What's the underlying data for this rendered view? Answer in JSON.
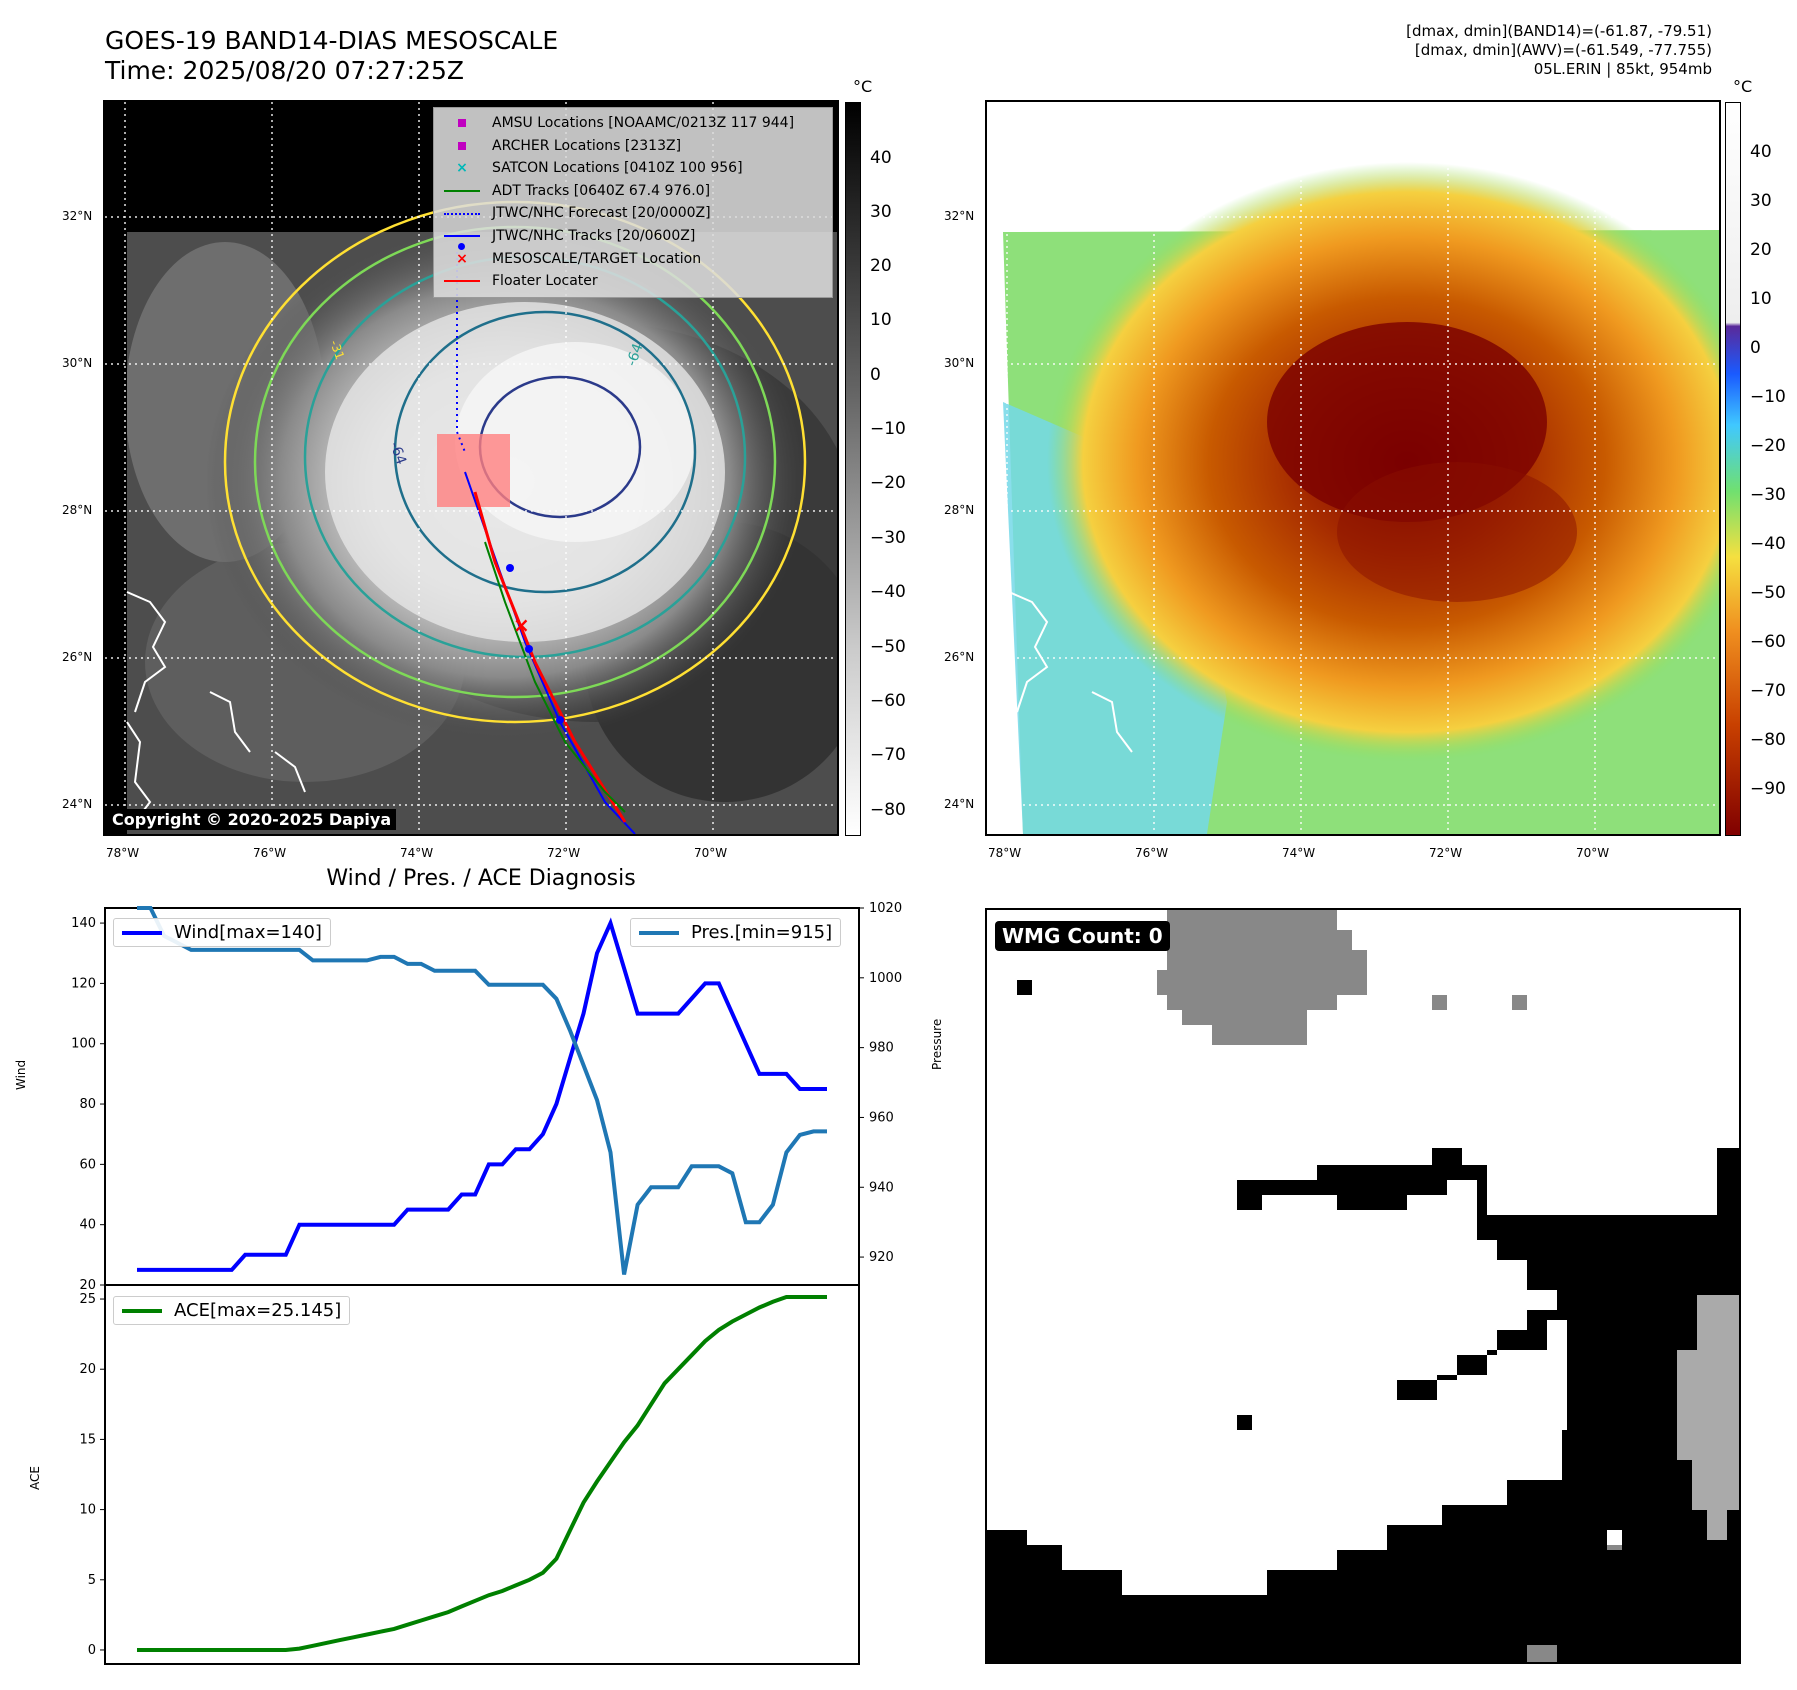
{
  "header": {
    "title_line1": "GOES-19 BAND14-DIAS MESOSCALE",
    "title_line2": "Time: 2025/08/20 07:27:25Z",
    "info_line1": "[dmax, dmin](BAND14)=(-61.87, -79.51)",
    "info_line2": "[dmax, dmin](AWV)=(-61.549, -77.755)",
    "info_line3": "05L.ERIN | 85kt, 954mb"
  },
  "map_axes": {
    "lat_labels": [
      "32°N",
      "30°N",
      "28°N",
      "26°N",
      "24°N"
    ],
    "lon_labels": [
      "78°W",
      "76°W",
      "74°W",
      "72°W",
      "70°W"
    ]
  },
  "ir_panel": {
    "unit": "°C",
    "colorbar_ticks": [
      "40",
      "30",
      "20",
      "10",
      "0",
      "−10",
      "−20",
      "−30",
      "−40",
      "−50",
      "−60",
      "−70",
      "−80"
    ],
    "contour_labels": [
      "-64",
      "-64",
      "-31"
    ],
    "copyright": "Copyright © 2020-2025 Dapiya",
    "legend": [
      {
        "label": "AMSU Locations [NOAAMC/0213Z 117 944]",
        "icon": "magenta-square",
        "color": "#c000c0"
      },
      {
        "label": "ARCHER Locations [2313Z]",
        "icon": "magenta-square",
        "color": "#c000c0"
      },
      {
        "label": "SATCON Locations [0410Z 100 956]",
        "icon": "cyan-x",
        "color": "#00b8b8"
      },
      {
        "label": "ADT Tracks [0640Z 67.4 976.0]",
        "icon": "green-line",
        "color": "#008000"
      },
      {
        "label": "JTWC/NHC Forecast [20/0000Z]",
        "icon": "blue-dotted-line",
        "color": "#0000ff"
      },
      {
        "label": "JTWC/NHC Tracks [20/0600Z]",
        "icon": "blue-line-dot",
        "color": "#0000ff"
      },
      {
        "label": "MESOSCALE/TARGET Location",
        "icon": "red-x",
        "color": "#ff0000"
      },
      {
        "label": "Floater Locater",
        "icon": "red-line",
        "color": "#ff0000"
      }
    ]
  },
  "awv_panel": {
    "unit": "°C",
    "colorbar_ticks": [
      "40",
      "30",
      "20",
      "10",
      "0",
      "−10",
      "−20",
      "−30",
      "−40",
      "−50",
      "−60",
      "−70",
      "−80",
      "−90"
    ]
  },
  "wmg_panel": {
    "label": "WMG Count: 0"
  },
  "chart_data": [
    {
      "type": "line",
      "title": "Wind / Pres. / ACE Diagnosis",
      "ylabel": "Wind",
      "ylabel_right": "Pressure",
      "ylim": [
        20,
        145
      ],
      "ylim_right": [
        912,
        1020
      ],
      "yticks": [
        20,
        40,
        60,
        80,
        100,
        120,
        140
      ],
      "yticks_right": [
        920,
        940,
        960,
        980,
        1000,
        1020
      ],
      "x": [
        0,
        1,
        2,
        3,
        4,
        5,
        6,
        7,
        8,
        9,
        10,
        11,
        12,
        13,
        14,
        15,
        16,
        17,
        18,
        19,
        20,
        21,
        22,
        23,
        24,
        25,
        26,
        27,
        28,
        29,
        30,
        31,
        32,
        33,
        34,
        35,
        36,
        37,
        38,
        39,
        40,
        41,
        42,
        43,
        44,
        45,
        46,
        47,
        48,
        49,
        50,
        51
      ],
      "series": [
        {
          "name": "Wind",
          "legend": "Wind[max=140]",
          "color": "#0000ff",
          "axis": "left",
          "values": [
            25,
            25,
            25,
            25,
            25,
            25,
            25,
            25,
            30,
            30,
            30,
            30,
            40,
            40,
            40,
            40,
            40,
            40,
            40,
            40,
            45,
            45,
            45,
            45,
            50,
            50,
            60,
            60,
            65,
            65,
            70,
            80,
            95,
            110,
            130,
            140,
            125,
            110,
            110,
            110,
            110,
            115,
            120,
            120,
            110,
            100,
            90,
            90,
            90,
            85,
            85,
            85
          ]
        },
        {
          "name": "Pres.",
          "legend": "Pres.[min=915]",
          "color": "#1f77b4",
          "axis": "right",
          "values": [
            1020,
            1020,
            1012,
            1010,
            1008,
            1008,
            1008,
            1008,
            1008,
            1008,
            1008,
            1008,
            1008,
            1005,
            1005,
            1005,
            1005,
            1005,
            1006,
            1006,
            1004,
            1004,
            1002,
            1002,
            1002,
            1002,
            998,
            998,
            998,
            998,
            998,
            994,
            985,
            975,
            965,
            950,
            915,
            935,
            940,
            940,
            940,
            946,
            946,
            946,
            944,
            930,
            930,
            935,
            950,
            955,
            956,
            956
          ]
        }
      ],
      "legend_left": "Wind[max=140]",
      "legend_right": "Pres.[min=915]"
    },
    {
      "type": "line",
      "ylabel": "ACE",
      "ylim": [
        -1,
        26
      ],
      "yticks": [
        0,
        5,
        10,
        15,
        20,
        25
      ],
      "series": [
        {
          "name": "ACE",
          "legend": "ACE[max=25.145]",
          "color": "#008000",
          "values": [
            0,
            0,
            0,
            0,
            0,
            0,
            0,
            0,
            0,
            0,
            0,
            0,
            0.1,
            0.3,
            0.5,
            0.7,
            0.9,
            1.1,
            1.3,
            1.5,
            1.8,
            2.1,
            2.4,
            2.7,
            3.1,
            3.5,
            3.9,
            4.2,
            4.6,
            5.0,
            5.5,
            6.5,
            8.5,
            10.5,
            12.0,
            13.4,
            14.8,
            16.0,
            17.5,
            19.0,
            20.0,
            21.0,
            22.0,
            22.8,
            23.4,
            23.9,
            24.4,
            24.8,
            25.145,
            25.145,
            25.145,
            25.145
          ]
        }
      ],
      "legend": "ACE[max=25.145]"
    }
  ]
}
